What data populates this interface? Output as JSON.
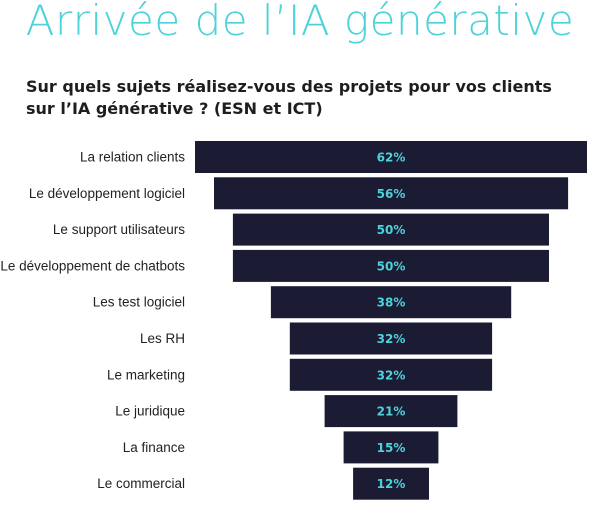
{
  "page": {
    "title": "Arrivée de l’IA générative"
  },
  "chart_data": {
    "type": "bar",
    "orientation": "horizontal-funnel",
    "title": "Sur quels sujets réalisez-vous des projets pour vos clients sur l’IA générative ? (ESN et ICT)",
    "categories": [
      "La relation clients",
      "Le développement logiciel",
      "Le support utilisateurs",
      "Le développement de chatbots",
      "Les test logiciel",
      "Les RH",
      "Le marketing",
      "Le juridique",
      "La finance",
      "Le commercial"
    ],
    "values": [
      62,
      56,
      50,
      50,
      38,
      32,
      32,
      21,
      15,
      12
    ],
    "labels": [
      "62%",
      "56%",
      "50%",
      "50%",
      "38%",
      "32%",
      "32%",
      "21%",
      "15%",
      "12%"
    ],
    "value_unit": "%",
    "colors": {
      "bar": "#1b1b33",
      "value_label": "#4dd2da",
      "category_label": "#222222",
      "title": "#4dd2da"
    }
  }
}
